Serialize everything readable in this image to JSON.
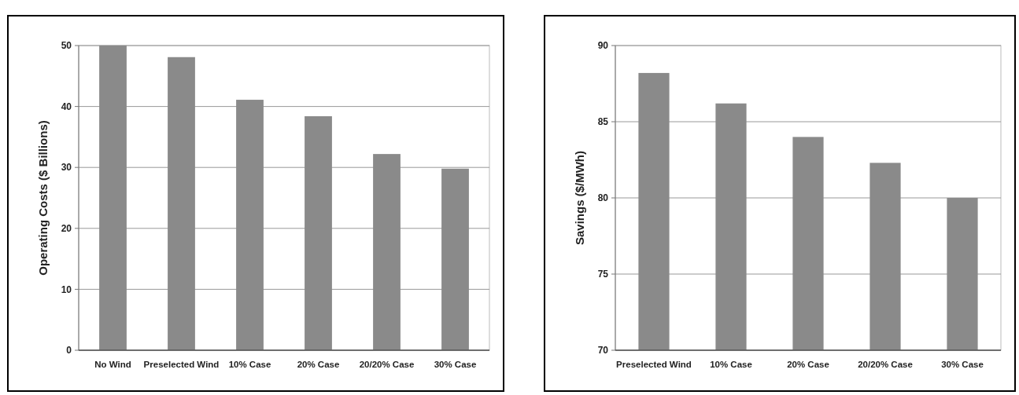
{
  "chart_data": [
    {
      "type": "bar",
      "ylabel": "Operating Costs ($ Billions)",
      "categories": [
        "No Wind",
        "Preselected Wind",
        "10% Case",
        "20% Case",
        "20/20% Case",
        "30% Case"
      ],
      "values": [
        50,
        48.1,
        41.1,
        38.4,
        32.2,
        29.8
      ],
      "color": "#8a8a8a",
      "ylim": [
        0,
        50
      ],
      "yticks": [
        0,
        10,
        20,
        30,
        40,
        50
      ],
      "grid": "y"
    },
    {
      "type": "bar",
      "ylabel": "Savings ($/MWh)",
      "categories": [
        "Preselected Wind",
        "10% Case",
        "20% Case",
        "20/20% Case",
        "30% Case"
      ],
      "values": [
        88.2,
        86.2,
        84.0,
        82.3,
        80.0
      ],
      "color": "#8a8a8a",
      "ylim": [
        70,
        90
      ],
      "yticks": [
        70,
        75,
        80,
        85,
        90
      ],
      "grid": "y"
    }
  ]
}
